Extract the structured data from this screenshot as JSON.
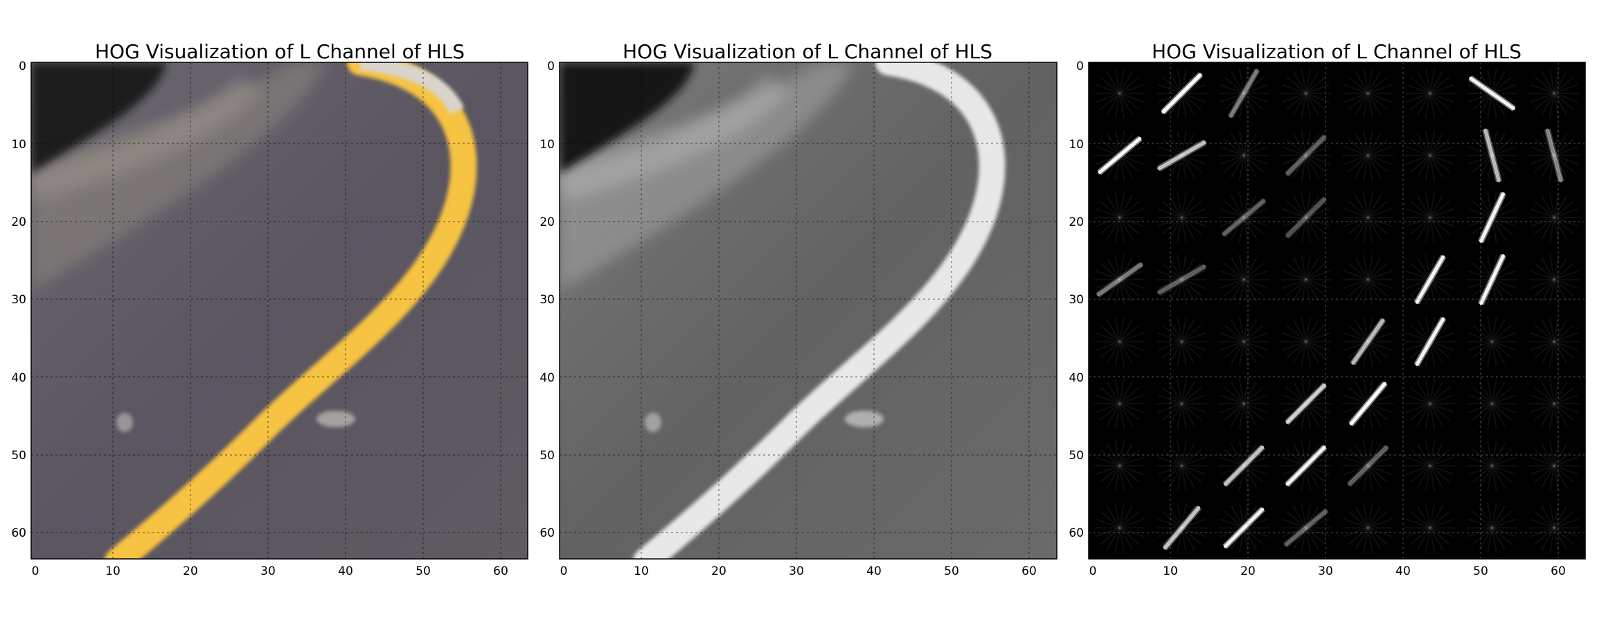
{
  "panels": [
    {
      "title": "HOG Visualization of L Channel of HLS",
      "image": "road-crop-color",
      "yticks": [
        "0",
        "10",
        "20",
        "30",
        "40",
        "50",
        "60"
      ],
      "xticks": [
        "0",
        "10",
        "20",
        "30",
        "40",
        "50",
        "60"
      ]
    },
    {
      "title": "HOG Visualization of L Channel of HLS",
      "image": "road-crop-l-channel-grayscale",
      "yticks": [
        "0",
        "10",
        "20",
        "30",
        "40",
        "50",
        "60"
      ],
      "xticks": [
        "0",
        "10",
        "20",
        "30",
        "40",
        "50",
        "60"
      ]
    },
    {
      "title": "HOG Visualization of L Channel of HLS",
      "image": "hog-visualization",
      "yticks": [
        "0",
        "10",
        "20",
        "30",
        "40",
        "50",
        "60"
      ],
      "xticks": [
        "0",
        "10",
        "20",
        "30",
        "40",
        "50",
        "60"
      ]
    }
  ],
  "colors": {
    "lane_line": "#f6c343",
    "road": "#5a5560",
    "shadow": "#1c1b1e",
    "hog_background": "#000000"
  }
}
